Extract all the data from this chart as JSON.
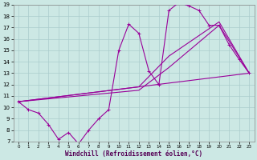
{
  "xlabel": "Windchill (Refroidissement éolien,°C)",
  "xlim": [
    -0.5,
    23.5
  ],
  "ylim": [
    7,
    19
  ],
  "xticks": [
    0,
    1,
    2,
    3,
    4,
    5,
    6,
    7,
    8,
    9,
    10,
    11,
    12,
    13,
    14,
    15,
    16,
    17,
    18,
    19,
    20,
    21,
    22,
    23
  ],
  "yticks": [
    7,
    8,
    9,
    10,
    11,
    12,
    13,
    14,
    15,
    16,
    17,
    18,
    19
  ],
  "bg_color": "#cce8e4",
  "line_color": "#990099",
  "grid_color": "#aacccc",
  "series1_x": [
    0,
    1,
    2,
    3,
    4,
    5,
    6,
    7,
    8,
    9,
    10,
    11,
    12,
    13,
    14,
    15,
    16,
    17,
    18,
    19,
    20,
    21,
    22,
    23
  ],
  "series1_y": [
    10.5,
    9.8,
    9.5,
    8.5,
    7.2,
    7.8,
    6.8,
    8.0,
    9.0,
    9.8,
    15.0,
    17.3,
    16.5,
    13.2,
    12.0,
    18.5,
    19.2,
    18.9,
    18.5,
    17.2,
    17.2,
    15.5,
    14.2,
    13.0
  ],
  "series2_x": [
    0,
    23
  ],
  "series2_y": [
    10.5,
    13.0
  ],
  "series3_x": [
    0,
    12,
    15,
    20,
    23
  ],
  "series3_y": [
    10.5,
    11.5,
    13.5,
    17.2,
    13.0
  ],
  "series4_x": [
    0,
    12,
    15,
    20,
    23
  ],
  "series4_y": [
    10.5,
    11.8,
    14.5,
    17.5,
    13.0
  ]
}
